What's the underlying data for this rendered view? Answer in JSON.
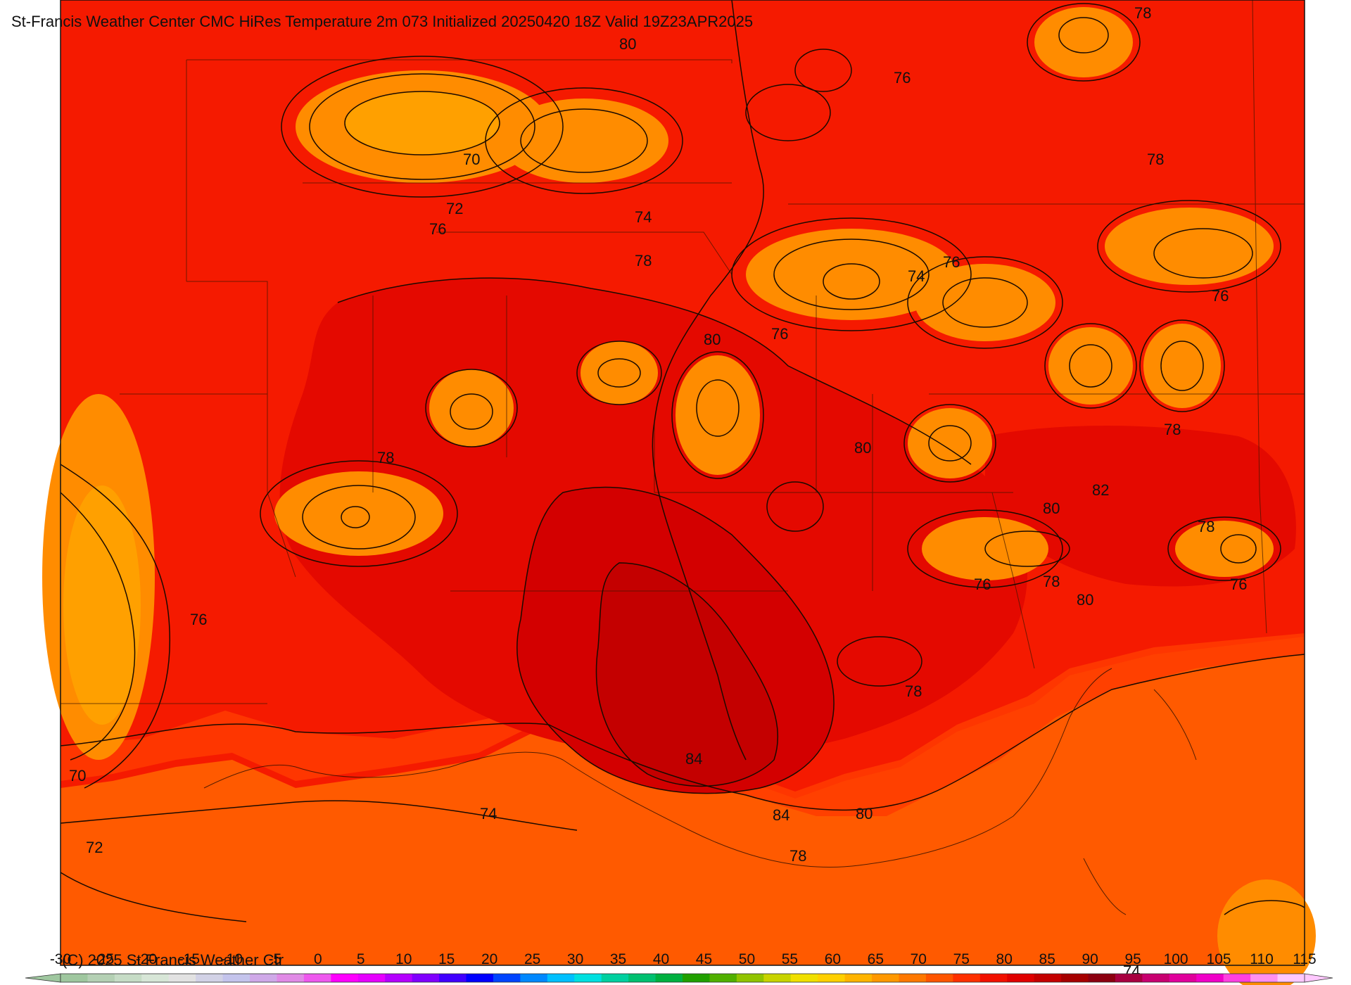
{
  "title": "St-Francis Weather Center CMC HiRes Temperature 2m  073 Initialized 20250420 18Z Valid 19Z23APR2025",
  "copyright": "(C) 2025 St Francis Weather Ctr",
  "contour_labels": [
    {
      "id": "lbl-80-top",
      "text": "80"
    },
    {
      "id": "lbl-78-topright",
      "text": "78"
    },
    {
      "id": "lbl-76-upper",
      "text": "76"
    },
    {
      "id": "lbl-70-north",
      "text": "70"
    },
    {
      "id": "lbl-78-east-upper",
      "text": "78"
    },
    {
      "id": "lbl-72-north",
      "text": "72"
    },
    {
      "id": "lbl-74-north",
      "text": "74"
    },
    {
      "id": "lbl-76-north",
      "text": "76"
    },
    {
      "id": "lbl-78-center-north",
      "text": "78"
    },
    {
      "id": "lbl-76-mid",
      "text": "76"
    },
    {
      "id": "lbl-74-mid",
      "text": "74"
    },
    {
      "id": "lbl-76-east",
      "text": "76"
    },
    {
      "id": "lbl-80-center",
      "text": "80"
    },
    {
      "id": "lbl-76-center",
      "text": "76"
    },
    {
      "id": "lbl-78-east-mid",
      "text": "78"
    },
    {
      "id": "lbl-80-south-center",
      "text": "80"
    },
    {
      "id": "lbl-78-west",
      "text": "78"
    },
    {
      "id": "lbl-82-east",
      "text": "82"
    },
    {
      "id": "lbl-80-east",
      "text": "80"
    },
    {
      "id": "lbl-78-far-east",
      "text": "78"
    },
    {
      "id": "lbl-76-southeast",
      "text": "76"
    },
    {
      "id": "lbl-78-southeast",
      "text": "78"
    },
    {
      "id": "lbl-80-southeast",
      "text": "80"
    },
    {
      "id": "lbl-76-far-east",
      "text": "76"
    },
    {
      "id": "lbl-76-west",
      "text": "76"
    },
    {
      "id": "lbl-78-south",
      "text": "78"
    },
    {
      "id": "lbl-84-south-a",
      "text": "84"
    },
    {
      "id": "lbl-70-west",
      "text": "70"
    },
    {
      "id": "lbl-74-gulf",
      "text": "74"
    },
    {
      "id": "lbl-84-south-b",
      "text": "84"
    },
    {
      "id": "lbl-80-coast",
      "text": "80"
    },
    {
      "id": "lbl-72-gulf",
      "text": "72"
    },
    {
      "id": "lbl-78-coast",
      "text": "78"
    },
    {
      "id": "lbl-74-bottom",
      "text": "74"
    }
  ],
  "colorbar": {
    "ticks": [
      "-30",
      "-25",
      "-20",
      "-15",
      "-10",
      "-5",
      "0",
      "5",
      "10",
      "15",
      "20",
      "25",
      "30",
      "35",
      "40",
      "45",
      "50",
      "55",
      "60",
      "65",
      "70",
      "75",
      "80",
      "85",
      "90",
      "95",
      "100",
      "105",
      "110",
      "115"
    ],
    "colors": [
      "#9fc79f",
      "#b4d0b4",
      "#c6dcc6",
      "#d7e6d7",
      "#e2e2e2",
      "#d2d2e6",
      "#c4c4ec",
      "#cfa9e8",
      "#e08ae6",
      "#ee58ee",
      "#ff00ff",
      "#e600ff",
      "#b400ff",
      "#8000ff",
      "#4000ff",
      "#0000ff",
      "#0044ff",
      "#0088ff",
      "#00c0ff",
      "#00e0e0",
      "#00d0a0",
      "#00c070",
      "#00b040",
      "#20a000",
      "#50b000",
      "#90c400",
      "#c8d400",
      "#f0e000",
      "#ffd000",
      "#ffb400",
      "#ff9800",
      "#ff7800",
      "#ff5500",
      "#ff3000",
      "#f21000",
      "#e00000",
      "#c40000",
      "#a60000",
      "#8c0010",
      "#a80040",
      "#c80070",
      "#e0009c",
      "#f000c8",
      "#ff40e0",
      "#ff90f0",
      "#ffc8ff"
    ]
  },
  "colors": {
    "background_t74": "#ff5a00",
    "t70_72": "#ffa000",
    "t72_74": "#ff8c00",
    "t76": "#ff3c00",
    "t78": "#f51a00",
    "t80": "#e40900",
    "t82": "#d30000",
    "t84": "#c40000",
    "contour": "#1a0a00"
  }
}
